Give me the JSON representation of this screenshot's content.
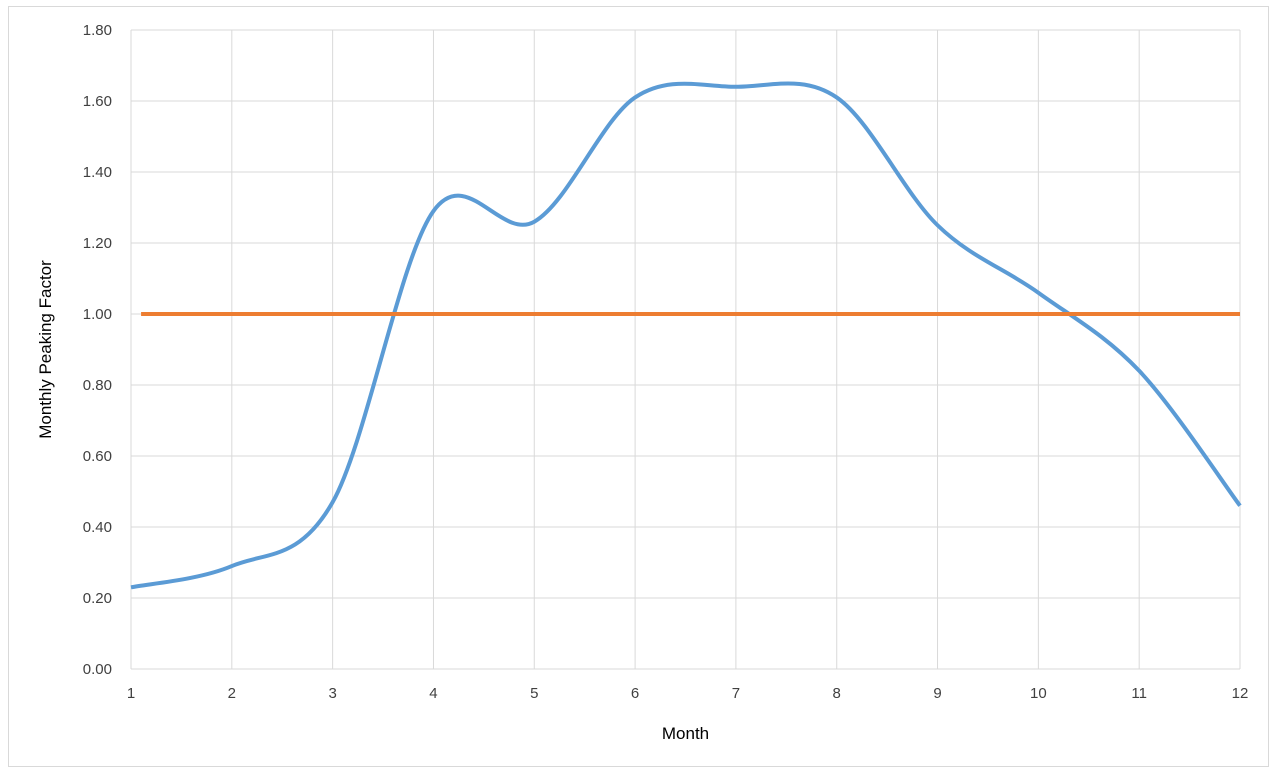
{
  "chart_data": {
    "type": "line",
    "title": "",
    "xlabel": "Month",
    "ylabel": "Monthly Peaking Factor",
    "xlim": [
      1,
      12
    ],
    "ylim": [
      0,
      1.8
    ],
    "x_ticks": [
      "1",
      "2",
      "3",
      "4",
      "5",
      "6",
      "7",
      "8",
      "9",
      "10",
      "11",
      "12"
    ],
    "y_ticks": [
      "0.00",
      "0.20",
      "0.40",
      "0.60",
      "0.80",
      "1.00",
      "1.20",
      "1.40",
      "1.60",
      "1.80"
    ],
    "grid": true,
    "legend": "none",
    "series": [
      {
        "color": "#5b9bd5",
        "smooth": true,
        "x": [
          1,
          2,
          3,
          4,
          5,
          6,
          7,
          8,
          9,
          10,
          11,
          12
        ],
        "y": [
          0.23,
          0.29,
          0.47,
          1.29,
          1.26,
          1.61,
          1.64,
          1.61,
          1.25,
          1.06,
          0.84,
          0.46
        ]
      },
      {
        "color": "#ed7d31",
        "smooth": false,
        "x": [
          1.1,
          12
        ],
        "y": [
          1.0,
          1.0
        ]
      }
    ]
  }
}
